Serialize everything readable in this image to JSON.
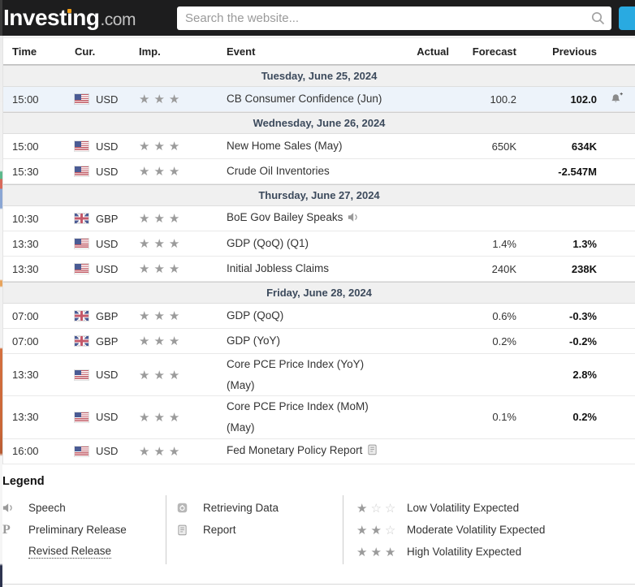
{
  "header": {
    "logo_text": "Investing",
    "logo_suffix": ".com",
    "search_placeholder": "Search the website...",
    "colors": {
      "accent_blue": "#29aae1",
      "logo_dot_orange": "#f7a21a"
    }
  },
  "table": {
    "columns": [
      "Time",
      "Cur.",
      "Imp.",
      "Event",
      "Actual",
      "Forecast",
      "Previous"
    ],
    "sections": [
      {
        "date": "Tuesday, June 25, 2024",
        "rows": [
          {
            "time": "15:00",
            "currency": "USD",
            "flag": "us",
            "importance": 3,
            "event": "CB Consumer Confidence (Jun)",
            "actual": "",
            "forecast": "100.2",
            "previous": "102.0",
            "highlighted": true,
            "alert": true
          }
        ]
      },
      {
        "date": "Wednesday, June 26, 2024",
        "rows": [
          {
            "time": "15:00",
            "currency": "USD",
            "flag": "us",
            "importance": 3,
            "event": "New Home Sales (May)",
            "actual": "",
            "forecast": "650K",
            "previous": "634K"
          },
          {
            "time": "15:30",
            "currency": "USD",
            "flag": "us",
            "importance": 3,
            "event": "Crude Oil Inventories",
            "actual": "",
            "forecast": "",
            "previous": "-2.547M"
          }
        ]
      },
      {
        "date": "Thursday, June 27, 2024",
        "rows": [
          {
            "time": "10:30",
            "currency": "GBP",
            "flag": "gb",
            "importance": 3,
            "event": "BoE Gov Bailey Speaks",
            "speech": true,
            "actual": "",
            "forecast": "",
            "previous": ""
          },
          {
            "time": "13:30",
            "currency": "USD",
            "flag": "us",
            "importance": 3,
            "event": "GDP (QoQ) (Q1)",
            "actual": "",
            "forecast": "1.4%",
            "previous": "1.3%"
          },
          {
            "time": "13:30",
            "currency": "USD",
            "flag": "us",
            "importance": 3,
            "event": "Initial Jobless Claims",
            "actual": "",
            "forecast": "240K",
            "previous": "238K"
          }
        ]
      },
      {
        "date": "Friday, June 28, 2024",
        "rows": [
          {
            "time": "07:00",
            "currency": "GBP",
            "flag": "gb",
            "importance": 3,
            "event": "GDP (QoQ)",
            "actual": "",
            "forecast": "0.6%",
            "previous": "-0.3%"
          },
          {
            "time": "07:00",
            "currency": "GBP",
            "flag": "gb",
            "importance": 3,
            "event": "GDP (YoY)",
            "actual": "",
            "forecast": "0.2%",
            "previous": "-0.2%"
          },
          {
            "time": "13:30",
            "currency": "USD",
            "flag": "us",
            "importance": 3,
            "event": "Core PCE Price Index (YoY)",
            "event_line2": "(May)",
            "actual": "",
            "forecast": "",
            "previous": "2.8%"
          },
          {
            "time": "13:30",
            "currency": "USD",
            "flag": "us",
            "importance": 3,
            "event": "Core PCE Price Index (MoM)",
            "event_line2": "(May)",
            "actual": "",
            "forecast": "0.1%",
            "previous": "0.2%"
          },
          {
            "time": "16:00",
            "currency": "USD",
            "flag": "us",
            "importance": 3,
            "event": "Fed Monetary Policy Report",
            "report": true,
            "actual": "",
            "forecast": "",
            "previous": ""
          }
        ]
      }
    ]
  },
  "legend": {
    "title": "Legend",
    "col1": [
      {
        "icon": "speech-icon",
        "label": "Speech"
      },
      {
        "icon": "preliminary-release-icon",
        "label": "Preliminary Release"
      },
      {
        "icon": null,
        "label": "Revised Release",
        "underline": true
      }
    ],
    "col2": [
      {
        "icon": "retrieving-data-icon",
        "label": "Retrieving Data"
      },
      {
        "icon": "report-icon",
        "label": "Report"
      }
    ],
    "col3": [
      {
        "stars": 1,
        "label": "Low Volatility Expected"
      },
      {
        "stars": 2,
        "label": "Moderate Volatility Expected"
      },
      {
        "stars": 3,
        "label": "High Volatility Expected"
      }
    ]
  }
}
